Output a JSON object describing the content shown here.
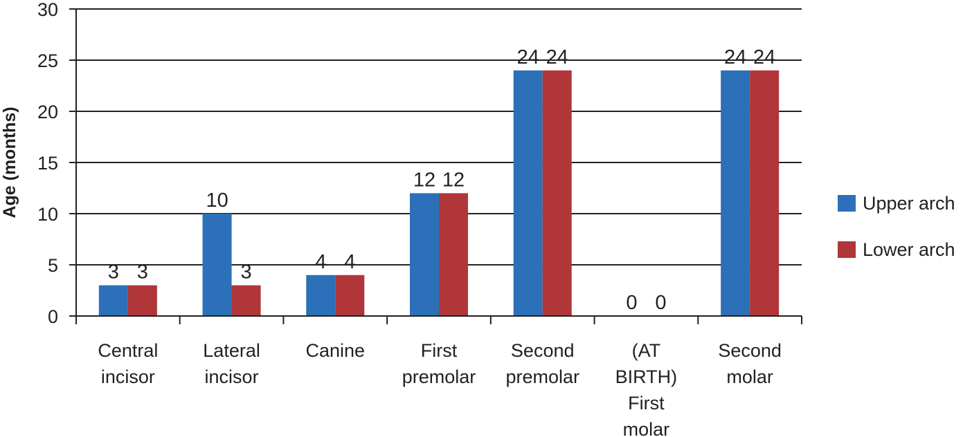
{
  "chart_data": {
    "type": "bar",
    "title": "",
    "xlabel": "",
    "ylabel": "Age (months)",
    "ylim": [
      0,
      30
    ],
    "yticks": [
      0,
      5,
      10,
      15,
      20,
      25,
      30
    ],
    "grid": true,
    "legend_position": "right",
    "categories": [
      [
        "Central",
        "incisor"
      ],
      [
        "Lateral",
        "incisor"
      ],
      [
        "Canine"
      ],
      [
        "First",
        "premolar"
      ],
      [
        "Second",
        "premolar"
      ],
      [
        "(AT",
        "BIRTH)",
        "First",
        "molar"
      ],
      [
        "Second",
        "molar"
      ]
    ],
    "series": [
      {
        "name": "Upper arch",
        "color": "#2b70b8",
        "values": [
          3,
          10,
          4,
          12,
          24,
          0,
          24
        ]
      },
      {
        "name": "Lower arch",
        "color": "#b0363a",
        "values": [
          3,
          3,
          4,
          12,
          24,
          0,
          24
        ]
      }
    ]
  }
}
